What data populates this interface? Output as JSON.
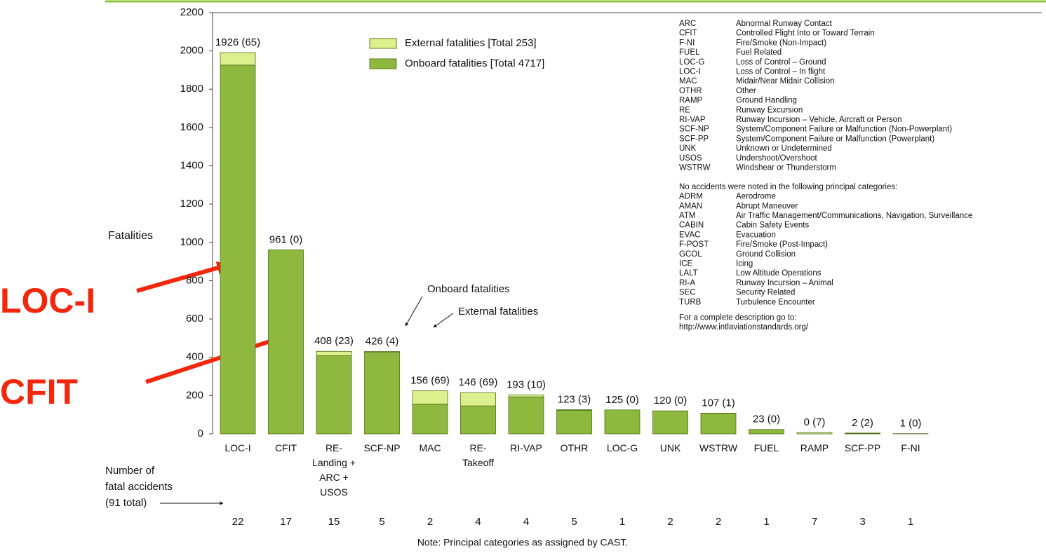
{
  "chart_data": {
    "type": "bar",
    "y_label": "Fatalities",
    "categories": [
      "LOC-I",
      "CFIT",
      "RE-\nLanding +\nARC +\nUSOS",
      "SCF-NP",
      "MAC",
      "RE-\nTakeoff",
      "RI-VAP",
      "OTHR",
      "LOC-G",
      "UNK",
      "WSTRW",
      "FUEL",
      "RAMP",
      "SCF-PP",
      "F-NI"
    ],
    "series": [
      {
        "name": "Onboard fatalities [Total 4717]",
        "color": "#8fb83e",
        "values": [
          1926,
          961,
          408,
          426,
          156,
          146,
          193,
          123,
          125,
          120,
          107,
          23,
          0,
          2,
          1
        ]
      },
      {
        "name": "External fatalities [Total 253]",
        "color": "#dcf08e",
        "values": [
          65,
          0,
          23,
          4,
          69,
          69,
          10,
          3,
          0,
          0,
          1,
          0,
          7,
          2,
          0
        ]
      }
    ],
    "bar_labels": [
      "1926 (65)",
      "961 (0)",
      "408 (23)",
      "426 (4)",
      "156 (69)",
      "146 (69)",
      "193 (10)",
      "123 (3)",
      "125 (0)",
      "120 (0)",
      "107 (1)",
      "23 (0)",
      "0 (7)",
      "2 (2)",
      "1 (0)"
    ],
    "ylim": [
      0,
      2200
    ],
    "yticks": [
      0,
      200,
      400,
      600,
      800,
      1000,
      1200,
      1400,
      1600,
      1800,
      2000,
      2200
    ],
    "accidents_label": [
      "Number of",
      "fatal accidents",
      "(91 total)"
    ],
    "accident_counts": [
      22,
      17,
      15,
      5,
      2,
      4,
      4,
      5,
      1,
      2,
      2,
      1,
      7,
      3,
      1
    ],
    "annotations": [
      "Onboard fatalities",
      "External fatalities",
      "LOC-I",
      "CFIT"
    ],
    "note": "Note:  Principal categories as assigned by CAST.",
    "glossary": {
      "entries": [
        [
          "ARC",
          "Abnormal Runway Contact"
        ],
        [
          "CFIT",
          "Controlled Flight Into or Toward Terrain"
        ],
        [
          "F-NI",
          "Fire/Smoke (Non-Impact)"
        ],
        [
          "FUEL",
          "Fuel Related"
        ],
        [
          "LOC-G",
          "Loss of Control – Ground"
        ],
        [
          "LOC-I",
          "Loss of Control – In flight"
        ],
        [
          "MAC",
          "Midair/Near Midair Collision"
        ],
        [
          "OTHR",
          "Other"
        ],
        [
          "RAMP",
          "Ground Handling"
        ],
        [
          "RE",
          "Runway Excursion"
        ],
        [
          "RI-VAP",
          "Runway Incursion – Vehicle, Aircraft or Person"
        ],
        [
          "SCF-NP",
          "System/Component Failure or  Malfunction (Non-Powerplant)"
        ],
        [
          "SCF-PP",
          "System/Component Failure or Malfunction  (Powerplant)"
        ],
        [
          "UNK",
          "Unknown or Undetermined"
        ],
        [
          "USOS",
          "Undershoot/Overshoot"
        ],
        [
          "WSTRW",
          "Windshear or Thunderstorm"
        ]
      ],
      "none_heading": "No accidents were noted in the following principal categories:",
      "none_entries": [
        [
          "ADRM",
          "Aerodrome"
        ],
        [
          "AMAN",
          "Abrupt Maneuver"
        ],
        [
          "ATM",
          "Air Traffic Management/Communications, Navigation, Surveillance"
        ],
        [
          "CABIN",
          "Cabin Safety Events"
        ],
        [
          "EVAC",
          "Evacuation"
        ],
        [
          "F-POST",
          "Fire/Smoke (Post-Impact)"
        ],
        [
          "GCOL",
          "Ground Collision"
        ],
        [
          "ICE",
          "Icing"
        ],
        [
          "LALT",
          "Low Altitude Operations"
        ],
        [
          "RI-A",
          "Runway Incursion – Animal"
        ],
        [
          "SEC",
          "Security Related"
        ],
        [
          "TURB",
          "Turbulence Encounter"
        ]
      ],
      "footer": [
        "For a complete description go to:",
        "http://www.intlaviationstandards.org/"
      ]
    }
  }
}
